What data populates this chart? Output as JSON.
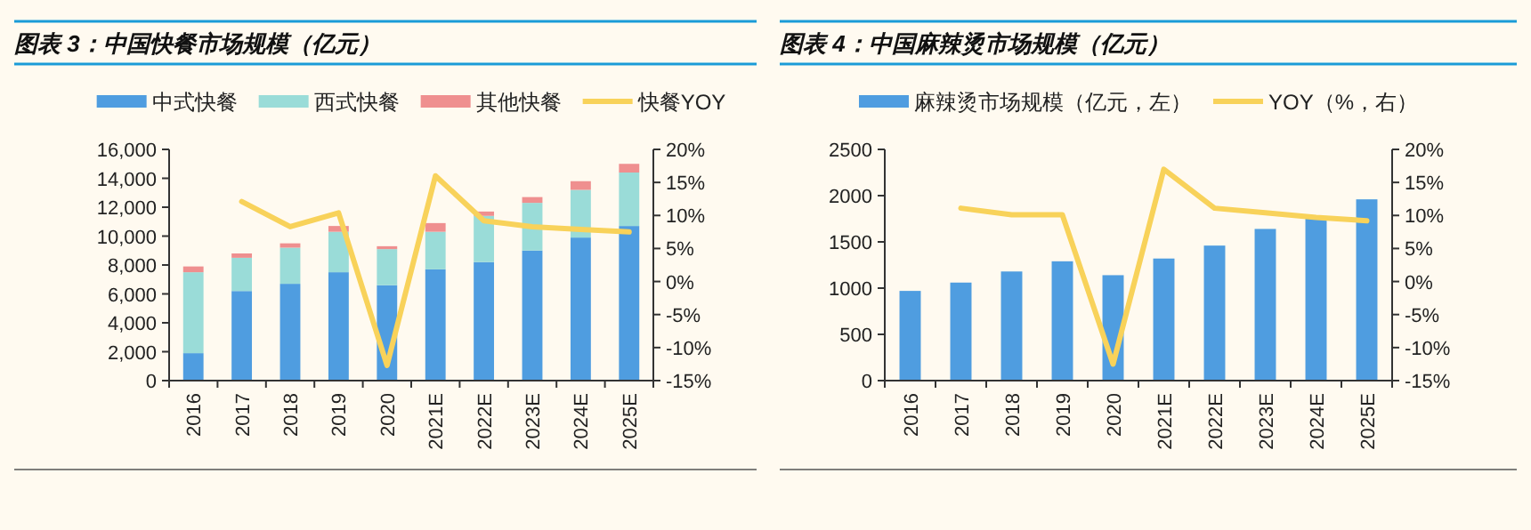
{
  "chart_data": [
    {
      "type": "bar",
      "title": "图表 3：中国快餐市场规模（亿元）",
      "categories": [
        "2016",
        "2017",
        "2018",
        "2019",
        "2020",
        "2021E",
        "2022E",
        "2023E",
        "2024E",
        "2025E"
      ],
      "stacked": true,
      "legend": "top",
      "grid": false,
      "marker": "none",
      "ylim": [
        0,
        16000
      ],
      "yticks": [
        0,
        {
          "value": 2000,
          "label": "2,000"
        },
        {
          "value": 4000,
          "label": "4,000"
        },
        {
          "value": 6000,
          "label": "6,000"
        },
        {
          "value": 8000,
          "label": "8,000"
        },
        {
          "value": 10000,
          "label": "10,000"
        },
        {
          "value": 12000,
          "label": "12,000"
        },
        {
          "value": 14000,
          "label": "14,000"
        },
        {
          "value": 16000,
          "label": "16,000"
        }
      ],
      "y2lim": [
        -15,
        20
      ],
      "y2ticks": [
        {
          "value": -15,
          "label": "-15%"
        },
        {
          "value": -10,
          "label": "-10%"
        },
        {
          "value": -5,
          "label": "-5%"
        },
        {
          "value": 0,
          "label": "0%"
        },
        {
          "value": 5,
          "label": "5%"
        },
        {
          "value": 10,
          "label": "10%"
        },
        {
          "value": 15,
          "label": "15%"
        },
        {
          "value": 20,
          "label": "20%"
        }
      ],
      "series": [
        {
          "name": "中式快餐",
          "color": "#4f9de0",
          "values": [
            1900,
            6200,
            6700,
            7500,
            6600,
            7700,
            8200,
            9000,
            9900,
            10700
          ]
        },
        {
          "name": "西式快餐",
          "color": "#9adcd8",
          "values": [
            5600,
            2300,
            2500,
            2800,
            2500,
            2600,
            3200,
            3300,
            3300,
            3700
          ]
        },
        {
          "name": "其他快餐",
          "color": "#ef8f8f",
          "values": [
            400,
            300,
            300,
            400,
            200,
            600,
            300,
            400,
            600,
            600
          ]
        },
        {
          "name": "快餐YOY",
          "type": "line",
          "axis": "y2",
          "color": "#f8d25a",
          "values": [
            null,
            12.1,
            8.3,
            10.4,
            -12.7,
            16.0,
            9.2,
            8.3,
            7.9,
            7.5
          ]
        }
      ]
    },
    {
      "type": "bar",
      "title": "图表 4：中国麻辣烫市场规模（亿元）",
      "categories": [
        "2016",
        "2017",
        "2018",
        "2019",
        "2020",
        "2021E",
        "2022E",
        "2023E",
        "2024E",
        "2025E"
      ],
      "legend": "top",
      "grid": false,
      "marker": "none",
      "ylim": [
        0,
        2500
      ],
      "yticks": [
        0,
        500,
        1000,
        1500,
        2000,
        2500
      ],
      "y2lim": [
        -15,
        20
      ],
      "y2ticks": [
        {
          "value": -15,
          "label": "-15%"
        },
        {
          "value": -10,
          "label": "-10%"
        },
        {
          "value": -5,
          "label": "-5%"
        },
        {
          "value": 0,
          "label": "0%"
        },
        {
          "value": 5,
          "label": "5%"
        },
        {
          "value": 10,
          "label": "10%"
        },
        {
          "value": 15,
          "label": "15%"
        },
        {
          "value": 20,
          "label": "20%"
        }
      ],
      "series": [
        {
          "name": "麻辣烫市场规模（亿元，左）",
          "color": "#4f9de0",
          "values": [
            970,
            1060,
            1180,
            1290,
            1140,
            1320,
            1460,
            1640,
            1760,
            1960
          ]
        },
        {
          "name": "YOY（%，右）",
          "type": "line",
          "axis": "y2",
          "color": "#f8d25a",
          "values": [
            null,
            11.1,
            10.1,
            10.1,
            -12.5,
            17.0,
            11.1,
            10.4,
            9.7,
            9.2
          ]
        }
      ]
    }
  ]
}
